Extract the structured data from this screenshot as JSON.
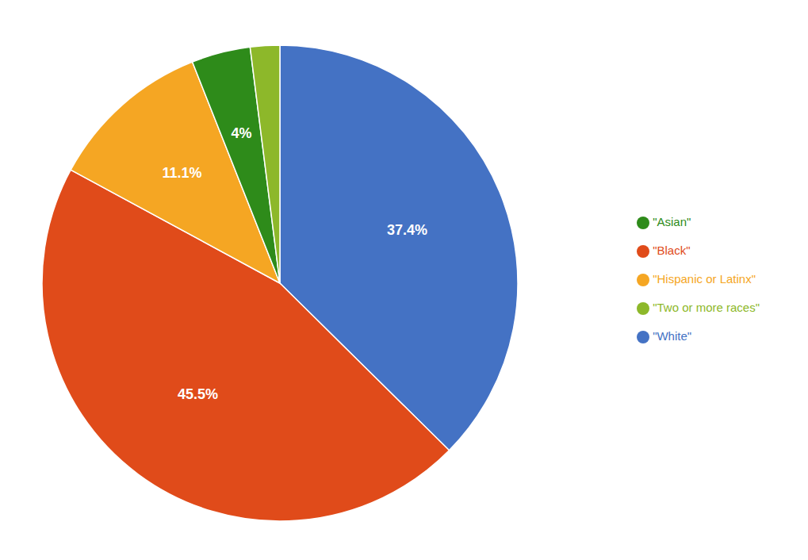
{
  "chart_data": {
    "type": "pie",
    "categories": [
      "\"White\"",
      "\"Black\"",
      "\"Hispanic or Latinx\"",
      "\"Asian\"",
      "\"Two or more races\""
    ],
    "values": [
      37.4,
      45.5,
      11.1,
      4.0,
      2.0
    ],
    "colors": [
      "#4472C4",
      "#E04B1A",
      "#F5A623",
      "#2E8B1A",
      "#8DB82A"
    ],
    "data_labels": true,
    "value_labels": [
      "37.4%",
      "45.5%",
      "11.1%",
      "4%",
      null
    ],
    "legend": "right"
  }
}
